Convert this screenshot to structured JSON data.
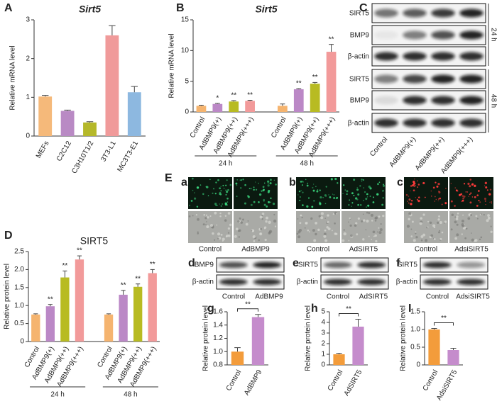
{
  "chart_data": [
    {
      "type": "bar",
      "panel": "A",
      "title": "Sirt5",
      "y_label": "Relative mRNA level",
      "categories": [
        "MEFs",
        "C2C12",
        "C3H10T1/2",
        "3T3-L1",
        "MC3T3-E1"
      ],
      "values": [
        1.02,
        0.65,
        0.35,
        2.6,
        1.13
      ],
      "errors": [
        0.03,
        0.02,
        0.02,
        0.25,
        0.15
      ],
      "colors": [
        "#f5b97a",
        "#b98ac4",
        "#b5b82a",
        "#f09a9a",
        "#8db8e0"
      ],
      "ylim": [
        0,
        3
      ],
      "yticks": [
        0,
        1,
        2,
        3
      ]
    },
    {
      "type": "bar",
      "panel": "B",
      "title": "Sirt5",
      "y_label": "Relative mRNA level",
      "categories": [
        "Control",
        "AdBMP9(+)",
        "AdBMP9(++)",
        "AdBMP9(+++)",
        "Control",
        "AdBMP9(+)",
        "AdBMP9(++)",
        "AdBMP9(+++)"
      ],
      "groups": [
        "24 h",
        "48 h"
      ],
      "values": [
        1.0,
        1.3,
        1.7,
        1.8,
        1.0,
        3.7,
        4.6,
        9.8
      ],
      "errors": [
        0.1,
        0.1,
        0.15,
        0.1,
        0.3,
        0.1,
        0.2,
        1.2
      ],
      "significance": [
        null,
        "*",
        "**",
        "**",
        null,
        "**",
        "**",
        "**"
      ],
      "colors": [
        "#f5b46f",
        "#bb88c6",
        "#b8bb22",
        "#f29a9a",
        "#f5b46f",
        "#bb88c6",
        "#b8bb22",
        "#f29a9a"
      ],
      "ylim": [
        0,
        15
      ],
      "yticks": [
        0,
        5,
        10,
        15
      ]
    },
    {
      "type": "bar",
      "panel": "D",
      "title": "SIRT5",
      "y_label": "Relative protein level",
      "categories": [
        "Control",
        "AdBMP9(+)",
        "AdBMP9(++)",
        "AdBMP9(+++)",
        "Control",
        "AdBMP9(+)",
        "AdBMP9(++)",
        "AdBMP9(+++)"
      ],
      "groups": [
        "24 h",
        "48 h"
      ],
      "values": [
        0.75,
        0.98,
        1.78,
        2.28,
        0.75,
        1.3,
        1.52,
        1.9
      ],
      "errors": [
        0.02,
        0.05,
        0.18,
        0.1,
        0.02,
        0.12,
        0.08,
        0.1
      ],
      "significance": [
        null,
        "**",
        "**",
        "**",
        null,
        "**",
        "**",
        "**"
      ],
      "colors": [
        "#f5b46f",
        "#bb88c6",
        "#b8bb22",
        "#f29a9a",
        "#f5b46f",
        "#bb88c6",
        "#b8bb22",
        "#f29a9a"
      ],
      "ylim": [
        0,
        2.5
      ],
      "yticks": [
        0,
        0.5,
        {
          "value": 1.0,
          "label": "1.0"
        },
        1.5,
        {
          "value": 2.0,
          "label": "2.0"
        },
        2.5
      ]
    },
    {
      "type": "bar",
      "panel": "g",
      "y_label": "Relative protein level",
      "categories": [
        "Control",
        "AdBMP9"
      ],
      "values": [
        1.0,
        1.52
      ],
      "errors": [
        0.06,
        0.04
      ],
      "significance": "**",
      "colors": [
        "#f39c3b",
        "#c58ccc"
      ],
      "ylim": [
        0.8,
        1.6
      ],
      "yticks": [
        0.8,
        {
          "value": 1.0,
          "label": "1.0"
        },
        1.2,
        1.4,
        1.6
      ]
    },
    {
      "type": "bar",
      "panel": "h",
      "y_label": "Relative protein level",
      "categories": [
        "Control",
        "AdSIRT5"
      ],
      "values": [
        1.0,
        3.6
      ],
      "errors": [
        0.1,
        0.7
      ],
      "significance": "**",
      "colors": [
        "#f39c3b",
        "#c58ccc"
      ],
      "ylim": [
        0,
        5
      ],
      "yticks": [
        0,
        1,
        2,
        3,
        4,
        5
      ]
    },
    {
      "type": "bar",
      "panel": "I",
      "y_label": "Relative protein level",
      "categories": [
        "Control",
        "AdsiSIRT5"
      ],
      "values": [
        1.0,
        0.42
      ],
      "errors": [
        0.03,
        0.05
      ],
      "significance": "**",
      "colors": [
        "#f39c3b",
        "#c58ccc"
      ],
      "ylim": [
        0,
        1.5
      ],
      "yticks": [
        0,
        0.5,
        {
          "value": 1.0,
          "label": "1.0"
        },
        1.5
      ]
    }
  ],
  "blots": [
    {
      "panel": "C",
      "rows": [
        "SIRT5",
        "BMP9",
        "β-actin",
        "SIRT5",
        "BMP9",
        "β-actin"
      ],
      "times": [
        "24 h",
        "48 h"
      ],
      "lanes": [
        "Control",
        "AdBMP9(+)",
        "AdBMP9(++)",
        "AdBMP9(+++)"
      ]
    },
    {
      "panel": "d",
      "rows": [
        "BMP9",
        "β-actin"
      ],
      "lanes": [
        "Control",
        "AdBMP9"
      ]
    },
    {
      "panel": "e",
      "rows": [
        "SIRT5",
        "β-actin"
      ],
      "lanes": [
        "Control",
        "AdSIRT5"
      ]
    },
    {
      "panel": "f",
      "rows": [
        "SIRT5",
        "β-actin"
      ],
      "lanes": [
        "Control",
        "AdsiSIRT5"
      ]
    }
  ],
  "imaging": {
    "panel": "E",
    "items": [
      {
        "panel": "a",
        "labels": [
          "Control",
          "AdBMP9"
        ]
      },
      {
        "panel": "b",
        "labels": [
          "Control",
          "AdSIRT5"
        ]
      },
      {
        "panel": "c",
        "labels": [
          "Control",
          "AdsiSIRT5"
        ]
      }
    ]
  }
}
